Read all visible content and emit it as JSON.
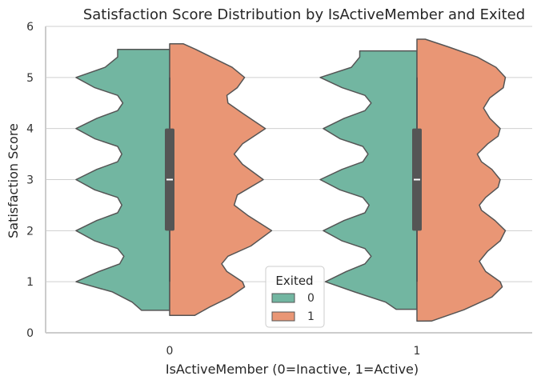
{
  "chart_data": {
    "type": "violin",
    "title": "Satisfaction Score Distribution by IsActiveMember and Exited",
    "xlabel": "IsActiveMember (0=Inactive, 1=Active)",
    "ylabel": "Satisfaction Score",
    "categories": [
      "0",
      "1"
    ],
    "ylim": [
      0,
      6
    ],
    "yticks": [
      "0",
      "1",
      "2",
      "3",
      "4",
      "5",
      "6"
    ],
    "grid": true,
    "split": true,
    "legend": {
      "title": "Exited",
      "placement": "lower-center",
      "entries": [
        {
          "label": "0",
          "color": "#72b6a1"
        },
        {
          "label": "1",
          "color": "#e99675"
        }
      ]
    },
    "groups": [
      {
        "category": "0",
        "box": {
          "q1": 2,
          "median": 3,
          "q3": 4,
          "whisker_low": 1,
          "whisker_high": 5
        },
        "series": [
          {
            "name": "0",
            "range": [
              0.44,
              5.55
            ],
            "density": [
              [
                0.44,
                0.27
              ],
              [
                0.6,
                0.36
              ],
              [
                0.8,
                0.55
              ],
              [
                1.0,
                0.9
              ],
              [
                1.2,
                0.68
              ],
              [
                1.35,
                0.48
              ],
              [
                1.5,
                0.44
              ],
              [
                1.65,
                0.5
              ],
              [
                1.8,
                0.72
              ],
              [
                2.0,
                0.9
              ],
              [
                2.2,
                0.7
              ],
              [
                2.35,
                0.5
              ],
              [
                2.5,
                0.46
              ],
              [
                2.65,
                0.5
              ],
              [
                2.8,
                0.72
              ],
              [
                3.0,
                0.9
              ],
              [
                3.2,
                0.7
              ],
              [
                3.35,
                0.5
              ],
              [
                3.5,
                0.46
              ],
              [
                3.65,
                0.5
              ],
              [
                3.8,
                0.72
              ],
              [
                4.0,
                0.9
              ],
              [
                4.2,
                0.7
              ],
              [
                4.35,
                0.5
              ],
              [
                4.5,
                0.45
              ],
              [
                4.65,
                0.5
              ],
              [
                4.8,
                0.72
              ],
              [
                5.0,
                0.9
              ],
              [
                5.2,
                0.62
              ],
              [
                5.4,
                0.5
              ],
              [
                5.55,
                0.5
              ]
            ]
          },
          {
            "name": "1",
            "range": [
              0.34,
              5.66
            ],
            "density": [
              [
                0.34,
                0.24
              ],
              [
                0.5,
                0.38
              ],
              [
                0.7,
                0.58
              ],
              [
                0.9,
                0.72
              ],
              [
                1.0,
                0.7
              ],
              [
                1.2,
                0.55
              ],
              [
                1.35,
                0.5
              ],
              [
                1.5,
                0.56
              ],
              [
                1.7,
                0.78
              ],
              [
                2.0,
                0.98
              ],
              [
                2.3,
                0.75
              ],
              [
                2.5,
                0.62
              ],
              [
                2.7,
                0.65
              ],
              [
                3.0,
                0.9
              ],
              [
                3.3,
                0.7
              ],
              [
                3.5,
                0.62
              ],
              [
                3.7,
                0.7
              ],
              [
                4.0,
                0.92
              ],
              [
                4.3,
                0.7
              ],
              [
                4.5,
                0.56
              ],
              [
                4.65,
                0.55
              ],
              [
                4.8,
                0.65
              ],
              [
                5.0,
                0.72
              ],
              [
                5.2,
                0.6
              ],
              [
                5.4,
                0.4
              ],
              [
                5.55,
                0.25
              ],
              [
                5.66,
                0.13
              ]
            ]
          }
        ]
      },
      {
        "category": "1",
        "box": {
          "q1": 2,
          "median": 3,
          "q3": 4,
          "whisker_low": 1,
          "whisker_high": 5
        },
        "series": [
          {
            "name": "0",
            "range": [
              0.46,
              5.52
            ],
            "density": [
              [
                0.46,
                0.2
              ],
              [
                0.6,
                0.3
              ],
              [
                0.8,
                0.6
              ],
              [
                1.0,
                0.88
              ],
              [
                1.2,
                0.68
              ],
              [
                1.35,
                0.5
              ],
              [
                1.5,
                0.44
              ],
              [
                1.65,
                0.5
              ],
              [
                1.8,
                0.72
              ],
              [
                2.0,
                0.9
              ],
              [
                2.2,
                0.7
              ],
              [
                2.35,
                0.5
              ],
              [
                2.5,
                0.46
              ],
              [
                2.65,
                0.52
              ],
              [
                2.8,
                0.74
              ],
              [
                3.0,
                0.93
              ],
              [
                3.2,
                0.72
              ],
              [
                3.35,
                0.52
              ],
              [
                3.5,
                0.47
              ],
              [
                3.65,
                0.52
              ],
              [
                3.8,
                0.74
              ],
              [
                4.0,
                0.9
              ],
              [
                4.2,
                0.7
              ],
              [
                4.35,
                0.5
              ],
              [
                4.5,
                0.44
              ],
              [
                4.65,
                0.5
              ],
              [
                4.8,
                0.72
              ],
              [
                5.0,
                0.93
              ],
              [
                5.2,
                0.63
              ],
              [
                5.4,
                0.55
              ],
              [
                5.52,
                0.55
              ]
            ]
          },
          {
            "name": "1",
            "range": [
              0.23,
              5.75
            ],
            "density": [
              [
                0.23,
                0.14
              ],
              [
                0.45,
                0.45
              ],
              [
                0.7,
                0.72
              ],
              [
                0.9,
                0.82
              ],
              [
                1.0,
                0.8
              ],
              [
                1.2,
                0.66
              ],
              [
                1.4,
                0.6
              ],
              [
                1.6,
                0.68
              ],
              [
                1.8,
                0.8
              ],
              [
                2.0,
                0.85
              ],
              [
                2.2,
                0.75
              ],
              [
                2.4,
                0.62
              ],
              [
                2.5,
                0.6
              ],
              [
                2.65,
                0.66
              ],
              [
                2.85,
                0.78
              ],
              [
                3.0,
                0.8
              ],
              [
                3.2,
                0.72
              ],
              [
                3.35,
                0.62
              ],
              [
                3.5,
                0.58
              ],
              [
                3.7,
                0.68
              ],
              [
                3.85,
                0.78
              ],
              [
                4.0,
                0.8
              ],
              [
                4.2,
                0.7
              ],
              [
                4.4,
                0.64
              ],
              [
                4.6,
                0.7
              ],
              [
                4.8,
                0.83
              ],
              [
                5.0,
                0.85
              ],
              [
                5.2,
                0.76
              ],
              [
                5.4,
                0.58
              ],
              [
                5.6,
                0.3
              ],
              [
                5.75,
                0.08
              ]
            ]
          }
        ]
      }
    ]
  },
  "style": {
    "colors": {
      "exited_0": "#72b6a1",
      "exited_1": "#e99675",
      "outline": "#555555",
      "box": "#555555",
      "grid": "#cfcfcf",
      "spine": "#cccccc"
    }
  }
}
